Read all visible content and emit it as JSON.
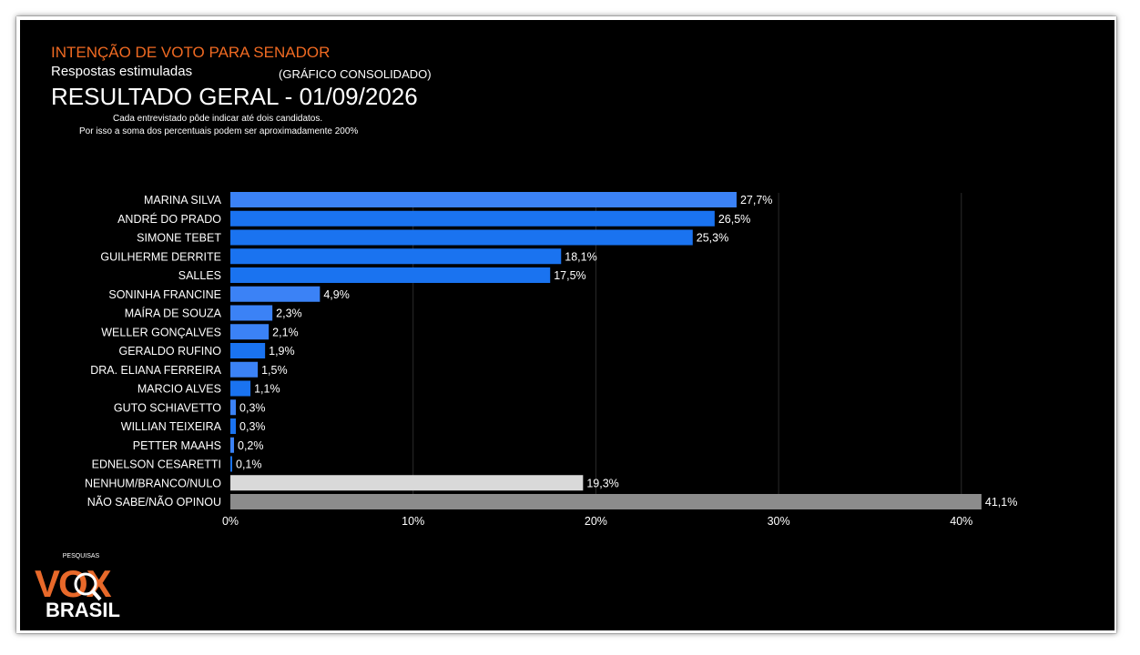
{
  "header": {
    "headline": "INTENÇÃO DE VOTO PARA SENADOR",
    "subtitle": "Respostas estimuladas",
    "consolidated": "(GRÁFICO CONSOLIDADO)",
    "title": "RESULTADO GERAL - 01/09/2026",
    "note_line1": "Cada entrevistado pôde indicar até dois candidatos.",
    "note_line2": "Por isso a soma dos percentuais podem ser aproximadamente 200%"
  },
  "chart_data": {
    "type": "bar",
    "orientation": "horizontal",
    "categories": [
      "MARINA SILVA",
      "ANDRÉ DO PRADO",
      "SIMONE TEBET",
      "GUILHERME DERRITE",
      "SALLES",
      "SONINHA FRANCINE",
      "MAÍRA DE SOUZA",
      "WELLER GONÇALVES",
      "GERALDO RUFINO",
      "DRA. ELIANA FERREIRA",
      "MARCIO ALVES",
      "GUTO SCHIAVETTO",
      "WILLIAN TEIXEIRA",
      "PETTER MAAHS",
      "EDNELSON CESARETTI",
      "NENHUM/BRANCO/NULO",
      "NÃO SABE/NÃO OPINOU"
    ],
    "values": [
      27.7,
      26.5,
      25.3,
      18.1,
      17.5,
      4.9,
      2.3,
      2.1,
      1.9,
      1.5,
      1.1,
      0.3,
      0.3,
      0.2,
      0.1,
      19.3,
      41.1
    ],
    "value_labels": [
      "27,7%",
      "26,5%",
      "25,3%",
      "18,1%",
      "17,5%",
      "4,9%",
      "2,3%",
      "2,1%",
      "1,9%",
      "1,5%",
      "1,1%",
      "0,3%",
      "0,3%",
      "0,2%",
      "0,1%",
      "19,3%",
      "41,1%"
    ],
    "colors": [
      "#3b82f6",
      "#1a73f0",
      "#1a73f0",
      "#1a73f0",
      "#1a73f0",
      "#3b82f6",
      "#3b82f6",
      "#3b82f6",
      "#1a73f0",
      "#3b82f6",
      "#1a73f0",
      "#3b82f6",
      "#1a73f0",
      "#3b82f6",
      "#1a73f0",
      "#d9d9d9",
      "#8c8c8c"
    ],
    "xlim": [
      0,
      40
    ],
    "xticks": [
      0,
      10,
      20,
      30,
      40
    ],
    "xtick_labels": [
      "0%",
      "10%",
      "20%",
      "30%",
      "40%"
    ],
    "grid": "vertical"
  },
  "logo": {
    "top_text": "PESQUISAS",
    "brand_main": "VOX",
    "brand_sub": "BRASIL",
    "color": "#e8692a"
  }
}
